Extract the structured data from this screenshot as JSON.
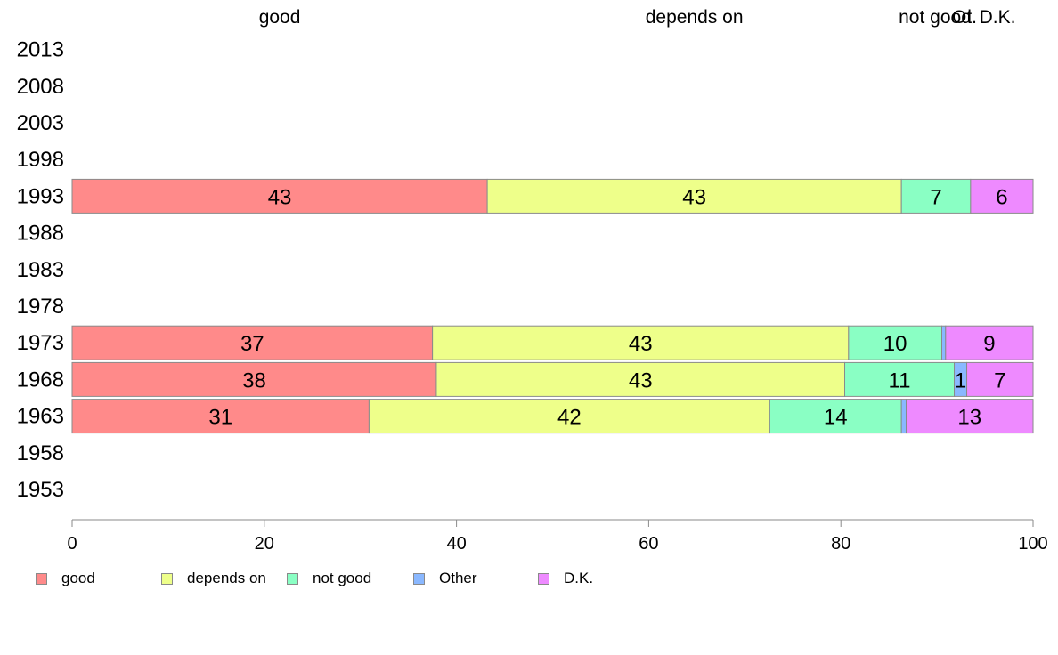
{
  "chart_data": {
    "type": "bar",
    "orientation": "horizontal",
    "stacked": true,
    "categories": [
      "2013",
      "2008",
      "2003",
      "1998",
      "1993",
      "1988",
      "1983",
      "1978",
      "1973",
      "1968",
      "1963",
      "1958",
      "1953"
    ],
    "series": [
      {
        "name": "good",
        "color": "#ff8a8a",
        "values": [
          null,
          null,
          null,
          null,
          43.2,
          null,
          null,
          null,
          37.5,
          37.9,
          30.9,
          null,
          null
        ],
        "labels": [
          "",
          "",
          "",
          "",
          "43",
          "",
          "",
          "",
          "37",
          "38",
          "31",
          "",
          ""
        ]
      },
      {
        "name": "depends on",
        "color": "#eeff8a",
        "values": [
          null,
          null,
          null,
          null,
          43.1,
          null,
          null,
          null,
          43.3,
          42.5,
          41.7,
          null,
          null
        ],
        "labels": [
          "",
          "",
          "",
          "",
          "43",
          "",
          "",
          "",
          "43",
          "43",
          "42",
          "",
          ""
        ]
      },
      {
        "name": "not good",
        "color": "#8affc4",
        "values": [
          null,
          null,
          null,
          null,
          7.2,
          null,
          null,
          null,
          9.7,
          11.4,
          13.7,
          null,
          null
        ],
        "labels": [
          "",
          "",
          "",
          "",
          "7",
          "",
          "",
          "",
          "10",
          "11",
          "14",
          "",
          ""
        ]
      },
      {
        "name": "Other",
        "color": "#8ab8ff",
        "values": [
          null,
          null,
          null,
          null,
          0,
          null,
          null,
          null,
          0.4,
          1.3,
          0.5,
          null,
          null
        ],
        "labels": [
          "",
          "",
          "",
          "",
          "",
          "",
          "",
          "",
          "",
          "1",
          "",
          "",
          ""
        ]
      },
      {
        "name": "D.K.",
        "color": "#ee8aff",
        "values": [
          null,
          null,
          null,
          null,
          6.5,
          null,
          null,
          null,
          9.1,
          6.9,
          13.2,
          null,
          null
        ],
        "labels": [
          "",
          "",
          "",
          "",
          "6",
          "",
          "",
          "",
          "9",
          "7",
          "13",
          "",
          ""
        ]
      }
    ],
    "top_labels": [
      "good",
      "depends on",
      "not good",
      "Ot.",
      "D.K."
    ],
    "xlim": [
      0,
      100
    ],
    "xticks": [
      0,
      20,
      40,
      60,
      80,
      100
    ],
    "xlabel": "",
    "ylabel": "",
    "title": "",
    "grid": false,
    "legend_position": "bottom-left"
  }
}
